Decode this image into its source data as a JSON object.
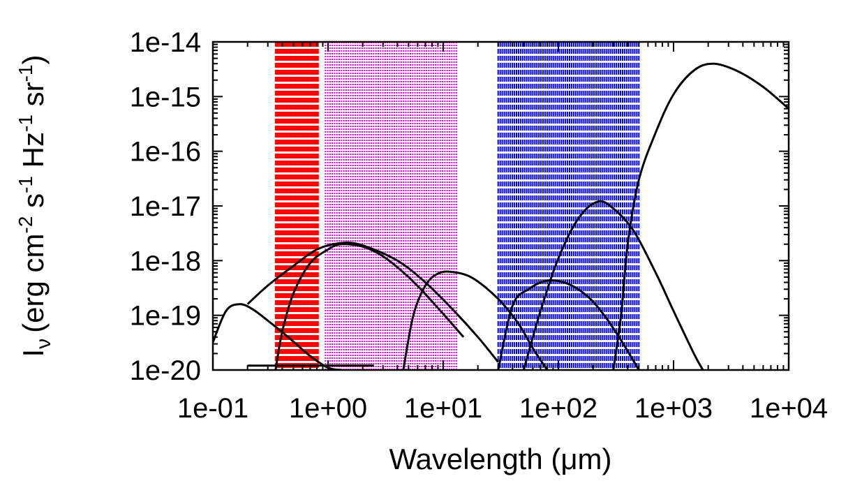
{
  "chart_data": {
    "type": "line",
    "title": "",
    "xlabel": "Wavelength (μm)",
    "ylabel": {
      "main": "I",
      "main_sub": "ν",
      "units": [
        "(erg cm",
        "-2",
        " s",
        "-1",
        " Hz",
        "-1",
        " sr",
        "-1",
        ")"
      ]
    },
    "x_scale": "log",
    "y_scale": "log",
    "xlim": [
      0.1,
      10000
    ],
    "ylim": [
      1e-20,
      1e-14
    ],
    "x_tick_labels": [
      "1e-01",
      "1e+00",
      "1e+01",
      "1e+02",
      "1e+03",
      "1e+04"
    ],
    "y_tick_labels": [
      "1e-14",
      "1e-15",
      "1e-16",
      "1e-17",
      "1e-18",
      "1e-19",
      "1e-20"
    ],
    "grid": false,
    "line_color": "#000000",
    "band_colors": {
      "red": "#ff0000",
      "magenta": "#dd00dd",
      "blue": "#0000ff"
    },
    "bands": [
      {
        "color": "red",
        "style": "dash",
        "x_range": [
          0.35,
          0.82
        ],
        "count": 34
      },
      {
        "color": "magenta",
        "style": "dot",
        "x_range": [
          0.95,
          13
        ],
        "count": 58
      },
      {
        "color": "blue",
        "style": "dash",
        "x_range": [
          30,
          500
        ],
        "count": 70
      }
    ],
    "series": [
      {
        "x": [
          0.1,
          0.13,
          0.17,
          0.22,
          0.3,
          0.45,
          0.7,
          1.0,
          1.3
        ],
        "y": [
          3.2e-20,
          1.2e-19,
          1.6e-19,
          1.3e-19,
          8e-20,
          4e-20,
          1.8e-20,
          1.1e-20,
          1e-20
        ]
      },
      {
        "x": [
          0.2,
          0.3,
          0.5,
          0.8,
          1.3,
          2.0,
          4.0,
          7.0,
          12.0,
          20.0,
          30.0
        ],
        "y": [
          1.6e-19,
          3.5e-19,
          8e-19,
          1.6e-18,
          2.1e-18,
          1.9e-18,
          1e-18,
          4e-19,
          1.3e-19,
          4e-20,
          1.4e-20
        ]
      },
      {
        "x": [
          0.35,
          0.4,
          0.5,
          0.7,
          1.0,
          1.3,
          2.0,
          3.0,
          5.0,
          8.0,
          15.0
        ],
        "y": [
          1e-20,
          5e-20,
          2.5e-19,
          9e-19,
          1.6e-18,
          2e-18,
          1.8e-18,
          1.2e-18,
          5e-19,
          1.8e-19,
          4e-20
        ]
      },
      {
        "x": [
          4.5,
          5.5,
          7.0,
          9.0,
          12.0,
          18.0,
          30.0,
          45.0,
          60.0,
          80.0
        ],
        "y": [
          1e-20,
          1e-19,
          3.5e-19,
          5.8e-19,
          6.2e-19,
          4.8e-19,
          2e-19,
          7e-20,
          2.5e-20,
          1e-20
        ]
      },
      {
        "x": [
          30,
          40,
          55,
          80,
          120,
          180,
          250,
          350,
          500
        ],
        "y": [
          1e-20,
          1.5e-19,
          3e-19,
          4.3e-19,
          3.8e-19,
          2.2e-19,
          1e-19,
          3.5e-20,
          1e-20
        ]
      },
      {
        "x": [
          50,
          70,
          100,
          150,
          220,
          300,
          450,
          700,
          1000,
          1500,
          1800
        ],
        "y": [
          1e-20,
          1.2e-19,
          1.1e-18,
          6e-18,
          1.2e-17,
          9e-18,
          3.5e-18,
          6e-19,
          1.2e-19,
          2e-20,
          1e-20
        ]
      },
      {
        "x": [
          300,
          350,
          400,
          500,
          700,
          1000,
          1500,
          2200,
          3500,
          6000,
          10000
        ],
        "y": [
          1e-20,
          1e-19,
          2e-18,
          3e-17,
          2.2e-16,
          1.1e-15,
          3e-15,
          4e-15,
          3e-15,
          1.5e-15,
          6e-16
        ]
      },
      {
        "x": [
          0.2,
          2.5
        ],
        "y": [
          1.2e-20,
          1.2e-20
        ]
      }
    ]
  }
}
